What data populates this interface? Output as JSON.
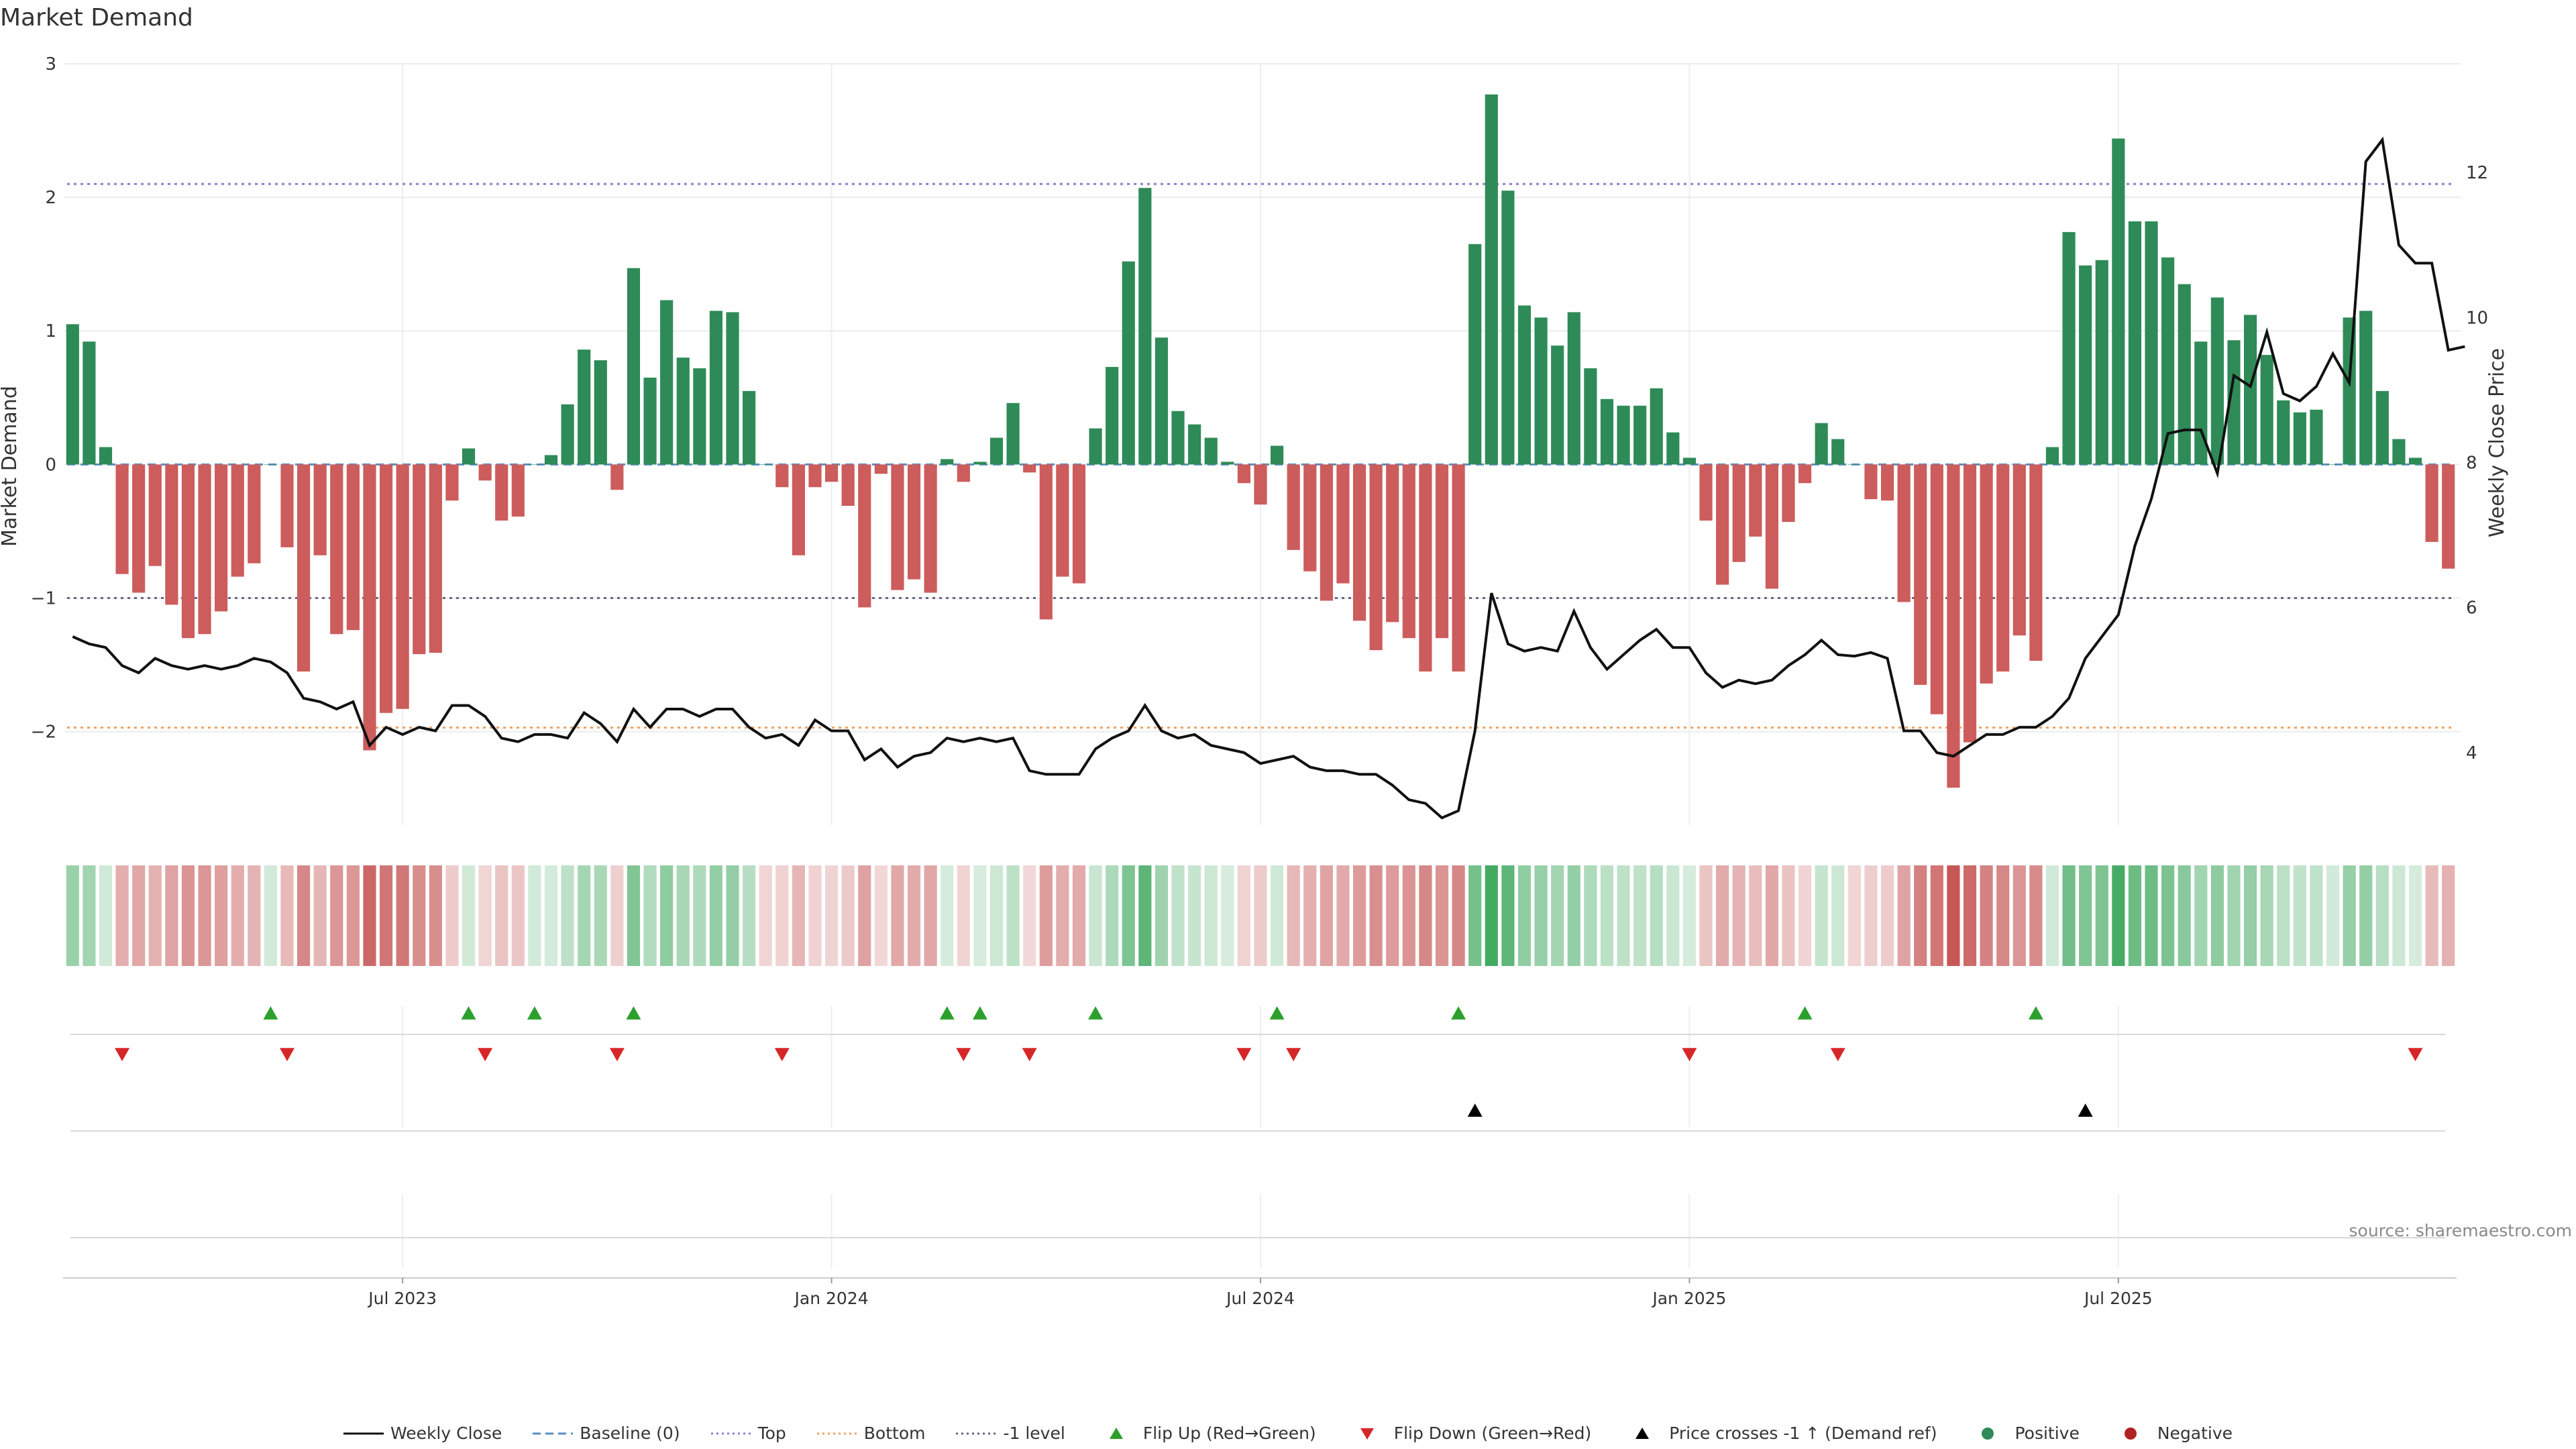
{
  "title": "Market Demand",
  "source_note": "source: sharemaestro.com",
  "colors": {
    "positive": "#2e8b57",
    "negative": "#cd5c5c",
    "price_line": "#111111",
    "top_line": "#8a7fd0",
    "bottom_line": "#f0a060",
    "minus1_line": "#666688",
    "baseline": "#5a8fc0",
    "flip_up": "#2ca02c",
    "flip_down": "#d62728",
    "price_cross": "#000000"
  },
  "legend": [
    {
      "label": "Weekly Close",
      "kind": "line",
      "color": "#111111"
    },
    {
      "label": "Baseline (0)",
      "kind": "dash",
      "color": "#5a8fc0"
    },
    {
      "label": "Top",
      "kind": "dot",
      "color": "#8a7fd0"
    },
    {
      "label": "Bottom",
      "kind": "dot",
      "color": "#f0a060"
    },
    {
      "label": "-1 level",
      "kind": "dot",
      "color": "#666688"
    },
    {
      "label": "Flip Up (Red→Green)",
      "kind": "tri-up",
      "color": "#2ca02c"
    },
    {
      "label": "Flip Down (Green→Red)",
      "kind": "tri-down",
      "color": "#d62728"
    },
    {
      "label": "Price crosses -1 ↑ (Demand ref)",
      "kind": "tri-up",
      "color": "#000000"
    },
    {
      "label": "Positive",
      "kind": "circle",
      "color": "#2e8b57"
    },
    {
      "label": "Negative",
      "kind": "circle",
      "color": "#b22222"
    }
  ],
  "chart_data": {
    "type": "bar",
    "title": "Market Demand",
    "ylabel": "Market Demand",
    "y2label": "Weekly Close Price",
    "ylim": [
      -2.7,
      3.0
    ],
    "y2lim": [
      3.0,
      13.5
    ],
    "yticks": [
      3,
      2,
      1,
      0,
      -1,
      -2
    ],
    "yticklabels": [
      "3",
      "2",
      "1",
      "0",
      "−1",
      "−2"
    ],
    "y2ticks": [
      12,
      10,
      8,
      6,
      4
    ],
    "y2ticklabels": [
      "12",
      "10",
      "8",
      "6",
      "4"
    ],
    "xticks": [
      20,
      46,
      72,
      98,
      124
    ],
    "xticklabels": [
      "Jul 2023",
      "Jan 2024",
      "Jul 2024",
      "Jan 2025",
      "Jul 2025"
    ],
    "reference_lines": {
      "top": 2.1,
      "bottom": -1.97,
      "minus_one": -1.0,
      "baseline": 0
    },
    "demand": [
      1.05,
      0.92,
      0.13,
      -0.82,
      -0.96,
      -0.76,
      -1.05,
      -1.3,
      -1.27,
      -1.1,
      -0.84,
      -0.74,
      0.0,
      -0.62,
      -1.55,
      -0.68,
      -1.27,
      -1.24,
      -2.14,
      -1.86,
      -1.83,
      -1.42,
      -1.41,
      -0.27,
      0.12,
      -0.12,
      -0.42,
      -0.39,
      0.0,
      0.07,
      0.45,
      0.86,
      0.78,
      -0.19,
      1.47,
      0.65,
      1.23,
      0.8,
      0.72,
      1.15,
      1.14,
      0.55,
      0.0,
      -0.17,
      -0.68,
      -0.17,
      -0.13,
      -0.31,
      -1.07,
      -0.07,
      -0.94,
      -0.86,
      -0.96,
      0.04,
      -0.13,
      0.02,
      0.2,
      0.46,
      -0.06,
      -1.16,
      -0.84,
      -0.89,
      0.27,
      0.73,
      1.52,
      2.07,
      0.95,
      0.4,
      0.3,
      0.2,
      0.02,
      -0.14,
      -0.3,
      0.14,
      -0.64,
      -0.8,
      -1.02,
      -0.89,
      -1.17,
      -1.39,
      -1.18,
      -1.3,
      -1.55,
      -1.3,
      -1.55,
      1.65,
      2.77,
      2.05,
      1.19,
      1.1,
      0.89,
      1.14,
      0.72,
      0.49,
      0.44,
      0.44,
      0.57,
      0.24,
      0.05,
      -0.42,
      -0.9,
      -0.73,
      -0.54,
      -0.93,
      -0.43,
      -0.14,
      0.31,
      0.19,
      0.0,
      -0.26,
      -0.27,
      -1.03,
      -1.65,
      -1.87,
      -2.42,
      -2.08,
      -1.64,
      -1.55,
      -1.28,
      -1.47,
      0.13,
      1.74,
      1.49,
      1.53,
      2.44,
      1.82,
      1.82,
      1.55,
      1.35,
      0.92,
      1.25,
      0.93,
      1.12,
      0.82,
      0.48,
      0.39,
      0.41,
      0.0,
      1.1,
      1.15,
      0.55,
      0.19,
      0.05,
      -0.58,
      -0.78
    ],
    "price": [
      5.6,
      5.5,
      5.45,
      5.2,
      5.1,
      5.3,
      5.2,
      5.15,
      5.2,
      5.15,
      5.2,
      5.3,
      5.25,
      5.1,
      4.75,
      4.7,
      4.6,
      4.7,
      4.1,
      4.35,
      4.25,
      4.35,
      4.3,
      4.65,
      4.65,
      4.5,
      4.2,
      4.15,
      4.25,
      4.25,
      4.2,
      4.55,
      4.4,
      4.15,
      4.6,
      4.35,
      4.6,
      4.6,
      4.5,
      4.6,
      4.6,
      4.35,
      4.2,
      4.25,
      4.1,
      4.45,
      4.3,
      4.3,
      3.9,
      4.05,
      3.8,
      3.95,
      4.0,
      4.2,
      4.15,
      4.2,
      4.15,
      4.2,
      3.75,
      3.7,
      3.7,
      3.7,
      4.05,
      4.2,
      4.3,
      4.65,
      4.3,
      4.2,
      4.25,
      4.1,
      4.05,
      4.0,
      3.85,
      3.9,
      3.95,
      3.8,
      3.75,
      3.75,
      3.7,
      3.7,
      3.55,
      3.35,
      3.3,
      3.1,
      3.2,
      4.3,
      6.2,
      5.5,
      5.4,
      5.45,
      5.4,
      5.95,
      5.45,
      5.15,
      5.35,
      5.55,
      5.7,
      5.45,
      5.45,
      5.1,
      4.9,
      5.0,
      4.95,
      5.0,
      5.2,
      5.35,
      5.55,
      5.35,
      5.33,
      5.38,
      5.3,
      4.3,
      4.3,
      4.0,
      3.95,
      4.1,
      4.25,
      4.25,
      4.35,
      4.35,
      4.5,
      4.75,
      5.3,
      5.6,
      5.9,
      6.85,
      7.5,
      8.4,
      8.45,
      8.45,
      7.85,
      9.2,
      9.05,
      9.8,
      8.95,
      8.85,
      9.05,
      9.5,
      9.1,
      12.15,
      12.45,
      11.0,
      10.75,
      10.75,
      9.55,
      9.6
    ],
    "heat_strip": [
      1.05,
      0.92,
      0.13,
      -0.82,
      -0.96,
      -0.76,
      -1.05,
      -1.3,
      -1.27,
      -1.1,
      -0.84,
      -0.74,
      0.1,
      -0.62,
      -1.55,
      -0.68,
      -1.27,
      -1.24,
      -2.14,
      -1.86,
      -1.83,
      -1.42,
      -1.41,
      -0.27,
      0.12,
      -0.12,
      -0.42,
      -0.39,
      0.1,
      0.07,
      0.45,
      0.86,
      0.78,
      -0.19,
      1.47,
      0.65,
      1.23,
      0.8,
      0.72,
      1.15,
      1.14,
      0.55,
      -0.1,
      -0.17,
      -0.68,
      -0.17,
      -0.13,
      -0.31,
      -1.07,
      -0.07,
      -0.94,
      -0.86,
      -0.96,
      0.04,
      -0.13,
      0.02,
      0.2,
      0.46,
      -0.06,
      -1.16,
      -0.84,
      -0.89,
      0.27,
      0.73,
      1.52,
      2.07,
      0.95,
      0.4,
      0.3,
      0.2,
      0.02,
      -0.14,
      -0.3,
      0.14,
      -0.64,
      -0.8,
      -1.02,
      -0.89,
      -1.17,
      -1.39,
      -1.18,
      -1.3,
      -1.55,
      -1.3,
      -1.55,
      1.65,
      2.77,
      2.05,
      1.19,
      1.1,
      0.89,
      1.14,
      0.72,
      0.49,
      0.44,
      0.44,
      0.57,
      0.24,
      0.05,
      -0.42,
      -0.9,
      -0.73,
      -0.54,
      -0.93,
      -0.43,
      -0.14,
      0.31,
      0.19,
      -0.1,
      -0.26,
      -0.27,
      -1.03,
      -1.65,
      -1.87,
      -2.42,
      -2.08,
      -1.64,
      -1.55,
      -1.28,
      -1.47,
      0.13,
      1.74,
      1.49,
      1.53,
      2.44,
      1.82,
      1.82,
      1.55,
      1.35,
      0.92,
      1.25,
      0.93,
      1.12,
      0.82,
      0.48,
      0.39,
      0.41,
      0.1,
      1.1,
      1.15,
      0.55,
      0.19,
      0.05,
      -0.58,
      -0.78
    ],
    "flip_up_weeks": [
      12,
      24,
      28,
      34,
      53,
      55,
      62,
      73,
      84,
      105,
      119
    ],
    "flip_down_weeks": [
      3,
      13,
      25,
      33,
      43,
      54,
      58,
      71,
      74,
      98,
      107,
      142
    ],
    "price_cross_weeks": [
      85,
      122
    ]
  }
}
